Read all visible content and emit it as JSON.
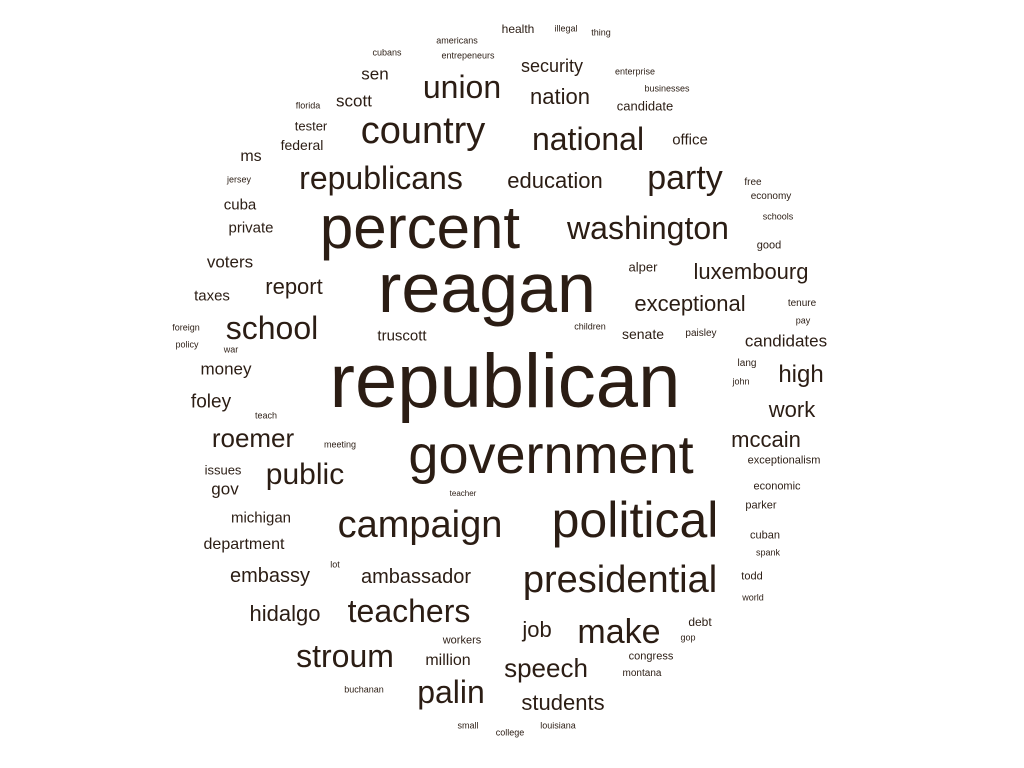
{
  "colors": {
    "background": "#ffffff",
    "text": "#2b1d14"
  },
  "words": [
    "republican",
    "reagan",
    "percent",
    "government",
    "political",
    "campaign",
    "presidential",
    "country",
    "national",
    "party",
    "republicans",
    "union",
    "washington",
    "school",
    "make",
    "teachers",
    "palin",
    "stroum",
    "public",
    "roemer",
    "speech",
    "mccain",
    "luxembourg",
    "exceptional",
    "high",
    "work",
    "education",
    "nation",
    "report",
    "security",
    "students",
    "ambassador",
    "job",
    "embassy",
    "hidalgo",
    "million",
    "department",
    "candidates",
    "michigan",
    "foley",
    "scott",
    "sen",
    "office",
    "voters",
    "money",
    "truscott",
    "senate",
    "gov",
    "federal",
    "private",
    "cuba",
    "taxes",
    "ms",
    "tester",
    "alper",
    "candidate",
    "issues",
    "health",
    "economic",
    "exceptionalism",
    "good",
    "debt",
    "parker",
    "todd",
    "cuban",
    "workers",
    "congress",
    "montana",
    "children",
    "paisley",
    "lang",
    "john",
    "war",
    "foreign",
    "policy",
    "teach",
    "meeting",
    "teacher",
    "economy",
    "schools",
    "free",
    "jersey",
    "florida",
    "cubans",
    "americans",
    "entrepeneurs",
    "illegal",
    "thing",
    "enterprise",
    "businesses",
    "tenure",
    "pay",
    "spank",
    "world",
    "gop",
    "buchanan",
    "small",
    "college",
    "louisiana",
    "lot"
  ]
}
